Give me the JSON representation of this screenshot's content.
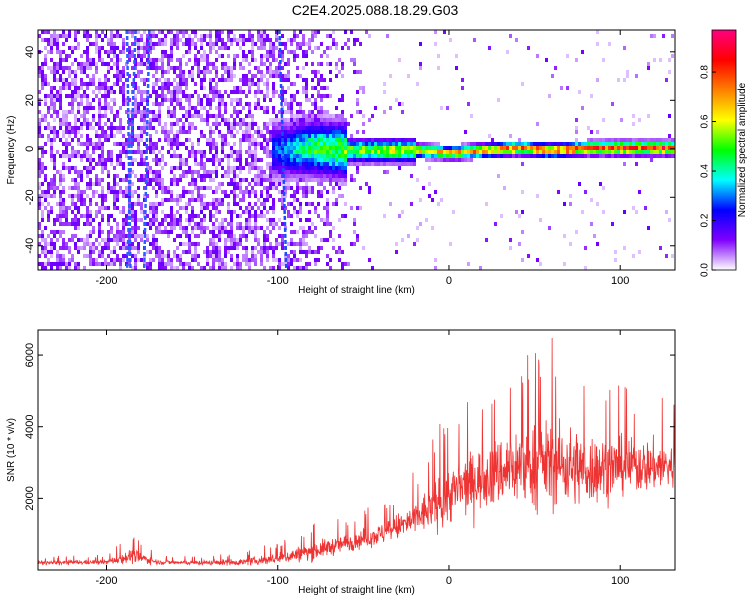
{
  "title": "C2E4.2025.088.18.29.G03",
  "chart_data": [
    {
      "type": "heatmap",
      "title": "",
      "xlabel": "Height of straight line (km)",
      "ylabel": "Frequency (Hz)",
      "xlim": [
        -240,
        132
      ],
      "ylim": [
        -50,
        49
      ],
      "xticks": [
        -200,
        -100,
        0,
        100
      ],
      "yticks": [
        -40,
        -20,
        0,
        20,
        40
      ],
      "colorbar": {
        "label": "Normalized spectral amplitude",
        "range": [
          0,
          0.97
        ],
        "ticks": [
          0.0,
          0.2,
          0.4,
          0.6,
          0.8
        ],
        "colormap": [
          "#ffffff",
          "#7f00ff",
          "#0000ff",
          "#00ffff",
          "#00ff00",
          "#ffff00",
          "#ff7f00",
          "#ff0000",
          "#ff0080"
        ]
      },
      "signal_track": {
        "description_points_x": [
          -240,
          -200,
          -150,
          -100,
          -80,
          -60,
          -40,
          -20,
          0,
          20,
          40,
          60,
          80,
          100,
          132
        ],
        "center_freq": [
          0,
          0,
          0,
          0,
          1,
          0,
          0,
          0,
          -1,
          0,
          1,
          0,
          1,
          1,
          1
        ],
        "peak_amplitude": [
          0.15,
          0.2,
          0.2,
          0.3,
          0.5,
          0.55,
          0.6,
          0.65,
          0.7,
          0.75,
          0.8,
          0.85,
          0.85,
          0.9,
          0.9
        ]
      }
    },
    {
      "type": "line",
      "title": "",
      "xlabel": "Height of straight line (km)",
      "ylabel": "SNR (10 * v/v)",
      "xlim": [
        -240,
        132
      ],
      "ylim": [
        0,
        6700
      ],
      "xticks": [
        -200,
        -100,
        0,
        100
      ],
      "yticks": [
        2000,
        4000,
        6000
      ],
      "color": "#ee3333",
      "envelope": {
        "x": [
          -240,
          -200,
          -185,
          -170,
          -150,
          -120,
          -100,
          -80,
          -60,
          -40,
          -20,
          0,
          20,
          40,
          60,
          80,
          100,
          132
        ],
        "mean": [
          200,
          220,
          400,
          220,
          200,
          220,
          320,
          520,
          750,
          1000,
          1400,
          2100,
          2600,
          2900,
          3000,
          2800,
          2900,
          2900
        ],
        "peak": [
          400,
          420,
          1050,
          420,
          380,
          500,
          800,
          1300,
          1500,
          1900,
          2800,
          4600,
          5200,
          6300,
          6600,
          6000,
          5300,
          5000
        ]
      }
    }
  ]
}
